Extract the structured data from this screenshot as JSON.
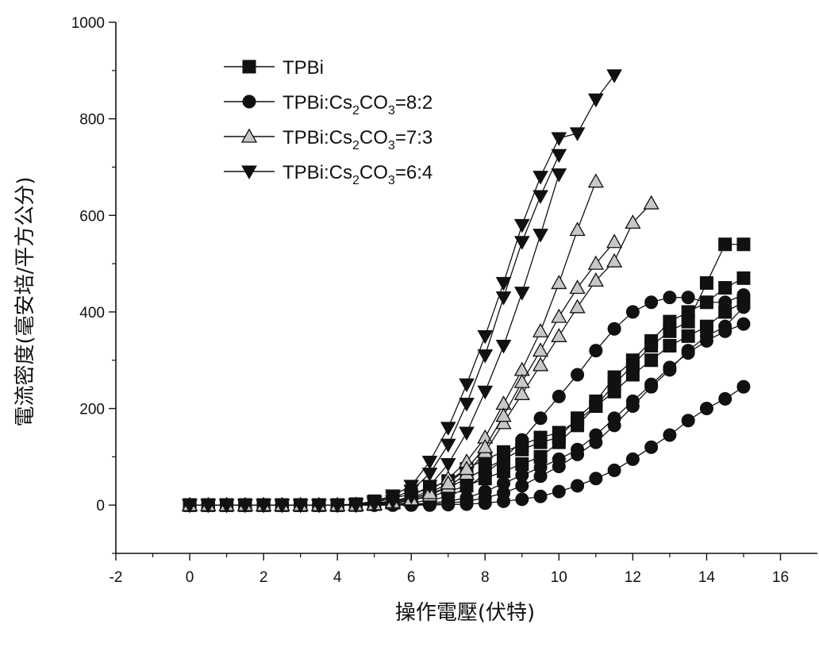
{
  "chart_data": {
    "type": "line",
    "xlabel": "操作電壓(伏特)",
    "ylabel": "電流密度(毫安培/平方公分)",
    "xlim": [
      -2,
      17
    ],
    "ylim": [
      -100,
      1000
    ],
    "x_ticks": [
      -2,
      0,
      2,
      4,
      6,
      8,
      10,
      12,
      14,
      16
    ],
    "y_ticks": [
      0,
      200,
      400,
      600,
      800,
      1000
    ],
    "legend_position": "top-left",
    "grid": false,
    "series": [
      {
        "name": "TPBi",
        "marker": "square",
        "color": "#111111",
        "curves": [
          {
            "x": [
              0,
              0.5,
              1,
              1.5,
              2,
              2.5,
              3,
              3.5,
              4,
              4.5,
              5,
              5.5,
              6,
              6.5,
              7,
              7.5,
              8,
              8.5,
              9,
              9.5,
              10,
              10.5,
              11,
              11.5,
              12,
              12.5,
              13,
              13.5,
              14,
              14.5,
              15
            ],
            "y": [
              0,
              0,
              0,
              0,
              0,
              0,
              0,
              0,
              0,
              2,
              8,
              15,
              22,
              35,
              50,
              75,
              95,
              110,
              125,
              140,
              150,
              175,
              205,
              235,
              270,
              300,
              330,
              350,
              370,
              400,
              420
            ]
          },
          {
            "x": [
              0,
              0.5,
              1,
              1.5,
              2,
              2.5,
              3,
              3.5,
              4,
              4.5,
              5,
              5.5,
              6,
              6.5,
              7,
              7.5,
              8,
              8.5,
              9,
              9.5,
              10,
              10.5,
              11,
              11.5,
              12,
              12.5,
              13,
              13.5,
              14,
              14.5,
              15
            ],
            "y": [
              0,
              0,
              0,
              0,
              0,
              0,
              0,
              0,
              0,
              1,
              4,
              9,
              14,
              24,
              36,
              55,
              75,
              95,
              115,
              130,
              140,
              180,
              215,
              265,
              300,
              340,
              380,
              400,
              420,
              450,
              470
            ]
          },
          {
            "x": [
              0,
              0.5,
              1,
              1.5,
              2,
              2.5,
              3,
              3.5,
              4,
              4.5,
              5,
              5.5,
              6,
              6.5,
              7,
              7.5,
              8,
              8.5,
              9,
              9.5,
              10,
              10.5,
              11,
              11.5,
              12,
              12.5,
              13,
              13.5,
              14,
              14.5,
              15
            ],
            "y": [
              0,
              0,
              0,
              0,
              0,
              0,
              0,
              0,
              0,
              0,
              2,
              5,
              10,
              18,
              28,
              40,
              55,
              70,
              85,
              100,
              130,
              165,
              205,
              250,
              290,
              330,
              360,
              380,
              460,
              540,
              540
            ]
          }
        ]
      },
      {
        "name": "TPBi:Cs2CO3=8:2",
        "legend_label": {
          "prefix": "TPBi:Cs",
          "sub1": "2",
          "mid": "CO",
          "sub2": "3",
          "suffix": "=8:2"
        },
        "marker": "circle",
        "color": "#111111",
        "curves": [
          {
            "x": [
              0,
              0.5,
              1,
              1.5,
              2,
              2.5,
              3,
              3.5,
              4,
              4.5,
              5,
              5.5,
              6,
              6.5,
              7,
              7.5,
              8,
              8.5,
              9,
              9.5,
              10,
              10.5,
              11,
              11.5,
              12,
              12.5,
              13,
              13.5,
              14,
              14.5,
              15
            ],
            "y": [
              0,
              0,
              0,
              0,
              0,
              0,
              0,
              0,
              0,
              0,
              1,
              3,
              5,
              10,
              18,
              35,
              65,
              95,
              135,
              180,
              225,
              270,
              320,
              365,
              400,
              420,
              430,
              430,
              420,
              420,
              435
            ]
          },
          {
            "x": [
              0,
              0.5,
              1,
              1.5,
              2,
              2.5,
              3,
              3.5,
              4,
              4.5,
              5,
              5.5,
              6,
              6.5,
              7,
              7.5,
              8,
              8.5,
              9,
              9.5,
              10,
              10.5,
              11,
              11.5,
              12,
              12.5,
              13,
              13.5,
              14,
              14.5,
              15
            ],
            "y": [
              0,
              0,
              0,
              0,
              0,
              0,
              0,
              0,
              0,
              0,
              0,
              1,
              2,
              4,
              8,
              15,
              28,
              45,
              62,
              78,
              95,
              115,
              145,
              180,
              215,
              250,
              285,
              315,
              340,
              360,
              375
            ]
          },
          {
            "x": [
              0,
              0.5,
              1,
              1.5,
              2,
              2.5,
              3,
              3.5,
              4,
              4.5,
              5,
              5.5,
              6,
              6.5,
              7,
              7.5,
              8,
              8.5,
              9,
              9.5,
              10,
              10.5,
              11,
              11.5,
              12,
              12.5,
              13,
              13.5,
              14,
              14.5,
              15
            ],
            "y": [
              0,
              0,
              0,
              0,
              0,
              0,
              0,
              0,
              0,
              0,
              0,
              0,
              1,
              2,
              4,
              8,
              15,
              25,
              40,
              60,
              80,
              105,
              130,
              165,
              205,
              245,
              280,
              320,
              350,
              370,
              410
            ]
          },
          {
            "x": [
              0,
              0.5,
              1,
              1.5,
              2,
              2.5,
              3,
              3.5,
              4,
              4.5,
              5,
              5.5,
              6,
              6.5,
              7,
              7.5,
              8,
              8.5,
              9,
              9.5,
              10,
              10.5,
              11,
              11.5,
              12,
              12.5,
              13,
              13.5,
              14,
              14.5,
              15
            ],
            "y": [
              0,
              0,
              0,
              0,
              0,
              0,
              0,
              0,
              0,
              0,
              0,
              0,
              0,
              0,
              1,
              2,
              4,
              8,
              12,
              18,
              28,
              40,
              55,
              72,
              95,
              120,
              145,
              175,
              200,
              220,
              245
            ]
          }
        ]
      },
      {
        "name": "TPBi:Cs2CO3=7:3",
        "legend_label": {
          "prefix": "TPBi:Cs",
          "sub1": "2",
          "mid": "CO",
          "sub2": "3",
          "suffix": "=7:3"
        },
        "marker": "triangle-up",
        "color": "#111111",
        "fill": "#c8c8c8",
        "curves": [
          {
            "x": [
              0,
              0.5,
              1,
              1.5,
              2,
              2.5,
              3,
              3.5,
              4,
              4.5,
              5,
              5.5,
              6,
              6.5,
              7,
              7.5,
              8,
              8.5,
              9,
              9.5,
              10,
              10.5,
              11
            ],
            "y": [
              0,
              0,
              0,
              0,
              0,
              0,
              0,
              0,
              0,
              1,
              3,
              8,
              15,
              30,
              55,
              90,
              140,
              210,
              280,
              360,
              460,
              570,
              670
            ]
          },
          {
            "x": [
              0,
              0.5,
              1,
              1.5,
              2,
              2.5,
              3,
              3.5,
              4,
              4.5,
              5,
              5.5,
              6,
              6.5,
              7,
              7.5,
              8,
              8.5,
              9,
              9.5,
              10,
              10.5,
              11,
              11.5,
              12,
              12.5
            ],
            "y": [
              0,
              0,
              0,
              0,
              0,
              0,
              0,
              0,
              0,
              0,
              1,
              4,
              10,
              20,
              38,
              65,
              110,
              170,
              230,
              290,
              350,
              410,
              465,
              505,
              585,
              625
            ]
          },
          {
            "x": [
              0,
              0.5,
              1,
              1.5,
              2,
              2.5,
              3,
              3.5,
              4,
              4.5,
              5,
              5.5,
              6,
              6.5,
              7,
              7.5,
              8,
              8.5,
              9,
              9.5,
              10,
              10.5,
              11,
              11.5
            ],
            "y": [
              0,
              0,
              0,
              0,
              0,
              0,
              0,
              0,
              0,
              0,
              2,
              6,
              12,
              25,
              45,
              75,
              120,
              185,
              255,
              320,
              390,
              450,
              500,
              545
            ]
          }
        ]
      },
      {
        "name": "TPBi:Cs2CO3=6:4",
        "legend_label": {
          "prefix": "TPBi:Cs",
          "sub1": "2",
          "mid": "CO",
          "sub2": "3",
          "suffix": "=6:4"
        },
        "marker": "triangle-down",
        "color": "#111111",
        "curves": [
          {
            "x": [
              0,
              0.5,
              1,
              1.5,
              2,
              2.5,
              3,
              3.5,
              4,
              4.5,
              5,
              5.5,
              6,
              6.5,
              7,
              7.5,
              8,
              8.5,
              9,
              9.5,
              10,
              10.5,
              11,
              11.5
            ],
            "y": [
              0,
              0,
              0,
              0,
              0,
              0,
              0,
              0,
              0,
              2,
              8,
              20,
              40,
              90,
              160,
              250,
              350,
              460,
              580,
              680,
              760,
              770,
              840,
              890
            ]
          },
          {
            "x": [
              0,
              0.5,
              1,
              1.5,
              2,
              2.5,
              3,
              3.5,
              4,
              4.5,
              5,
              5.5,
              6,
              6.5,
              7,
              7.5,
              8,
              8.5,
              9,
              9.5,
              10
            ],
            "y": [
              0,
              0,
              0,
              0,
              0,
              0,
              0,
              0,
              0,
              1,
              5,
              15,
              30,
              65,
              125,
              210,
              310,
              430,
              545,
              640,
              725
            ]
          },
          {
            "x": [
              0,
              0.5,
              1,
              1.5,
              2,
              2.5,
              3,
              3.5,
              4,
              4.5,
              5,
              5.5,
              6,
              6.5,
              7,
              7.5,
              8,
              8.5,
              9,
              9.5,
              10
            ],
            "y": [
              0,
              0,
              0,
              0,
              0,
              0,
              0,
              0,
              0,
              0,
              2,
              8,
              18,
              40,
              85,
              150,
              235,
              330,
              440,
              560,
              685
            ]
          }
        ]
      }
    ]
  }
}
